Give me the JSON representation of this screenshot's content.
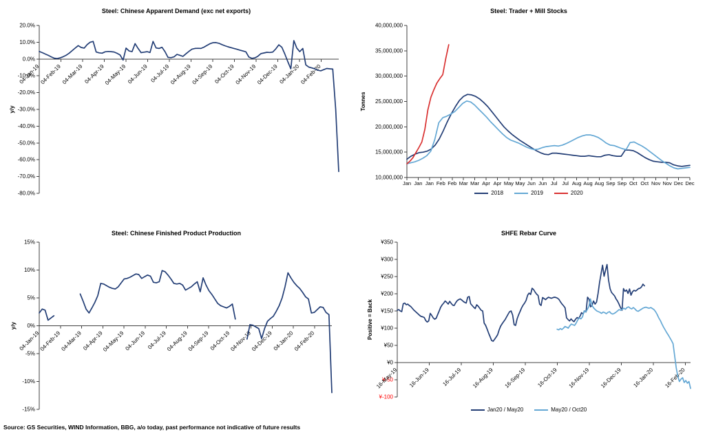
{
  "page": {
    "source_note": "Source: GS Securities, WIND Information, BBG, a/o today, past performance not indicative of future results"
  },
  "colors": {
    "navy": "#223d75",
    "light_blue": "#63a7d4",
    "red": "#d93030",
    "negative_tick_red": "#ff0000",
    "axis": "#404040"
  },
  "chart_data": [
    {
      "id": "demand",
      "type": "line",
      "title": "Steel: Chinese Apparent Demand (exc net exports)",
      "ylabel": "y/y",
      "ylim": [
        -80,
        20
      ],
      "ytick_step": 10,
      "yfmt": "pct1",
      "grid": false,
      "legend": false,
      "x_tick_rotated": true,
      "x_tick_end_frac": 0.941,
      "x_ticks": [
        "04-Jan-19",
        "04-Feb-19",
        "04-Mar-19",
        "04-Apr-19",
        "04-May-19",
        "04-Jun-19",
        "04-Jul-19",
        "04-Aug-19",
        "04-Sep-19",
        "04-Oct-19",
        "04-Nov-19",
        "04-Dec-19",
        "04-Jan-20",
        "04-Feb-20"
      ],
      "series": [
        {
          "name": "y/y",
          "color": "#223d75",
          "x_start": 0,
          "x_end": 1,
          "values": [
            4.5,
            3.8,
            3.0,
            2.2,
            1.3,
            0.5,
            0.3,
            0.7,
            1.4,
            2.3,
            3.5,
            5.0,
            6.5,
            8.0,
            6.9,
            6.5,
            8.6,
            10.0,
            10.5,
            4.2,
            3.7,
            3.5,
            4.3,
            4.5,
            4.4,
            4.2,
            3.4,
            2.4,
            -0.6,
            6.5,
            4.8,
            4.4,
            9.2,
            6.3,
            3.8,
            4.1,
            4.4,
            3.9,
            10.5,
            6.6,
            6.3,
            7.0,
            4.4,
            1.0,
            0.8,
            1.3,
            2.8,
            2.2,
            1.6,
            3.1,
            4.6,
            5.9,
            6.3,
            6.4,
            6.3,
            7.1,
            8.1,
            9.1,
            9.7,
            9.8,
            9.4,
            8.6,
            7.9,
            7.3,
            6.8,
            6.3,
            5.8,
            5.3,
            4.8,
            4.3,
            1.2,
            0.4,
            0.7,
            1.7,
            3.2,
            3.6,
            4.0,
            3.9,
            4.2,
            6.1,
            8.5,
            7.0,
            3.0,
            -1.5,
            -5.8,
            11.0,
            6.5,
            4.4,
            6.3,
            -3.5,
            -4.8,
            -5.3,
            -5.8,
            -6.7,
            -7.0,
            -6.3,
            -5.6,
            -5.8,
            -6.0,
            -30.0,
            -67.0
          ]
        }
      ]
    },
    {
      "id": "stocks",
      "type": "line",
      "title": "Steel: Trader + Mill Stocks",
      "ylabel": "Tonnes",
      "ylim": [
        10,
        40
      ],
      "ytick_step": 5,
      "yfmt": "comma_millions",
      "grid": false,
      "legend": true,
      "x_tick_rotated": false,
      "x_tick_end_frac": 1,
      "x_ticks": [
        "Jan",
        "Jan",
        "Jan",
        "Feb",
        "Feb",
        "Mar",
        "Mar",
        "Apr",
        "Apr",
        "May",
        "May",
        "Jun",
        "Jun",
        "Jul",
        "Jul",
        "Aug",
        "Aug",
        "Aug",
        "Sep",
        "Sep",
        "Oct",
        "Oct",
        "Nov",
        "Nov",
        "Dec",
        "Dec"
      ],
      "series": [
        {
          "name": "2018",
          "color": "#223d75",
          "x_start": 0,
          "x_end": 1,
          "values": [
            13.6,
            14.2,
            14.6,
            14.9,
            15.0,
            15.2,
            15.6,
            16.4,
            17.6,
            19.2,
            21.0,
            22.6,
            24.0,
            25.2,
            26.0,
            26.4,
            26.3,
            26.0,
            25.5,
            24.8,
            24.0,
            23.0,
            22.0,
            21.0,
            20.0,
            19.2,
            18.5,
            17.9,
            17.3,
            16.8,
            16.3,
            15.8,
            15.3,
            14.9,
            14.6,
            14.5,
            14.8,
            14.8,
            14.7,
            14.6,
            14.5,
            14.4,
            14.3,
            14.2,
            14.2,
            14.3,
            14.2,
            14.1,
            14.1,
            14.4,
            14.5,
            14.3,
            14.2,
            14.2,
            15.4,
            15.4,
            15.3,
            14.9,
            14.4,
            13.9,
            13.5,
            13.2,
            13.1,
            13.0,
            13.0,
            12.9,
            12.5,
            12.3,
            12.2,
            12.3,
            12.4
          ]
        },
        {
          "name": "2019",
          "color": "#63a7d4",
          "x_start": 0,
          "x_end": 1,
          "values": [
            12.7,
            12.9,
            13.1,
            13.4,
            13.8,
            14.3,
            15.2,
            17.5,
            20.8,
            21.8,
            22.1,
            22.5,
            23.0,
            23.8,
            24.6,
            25.1,
            24.9,
            24.3,
            23.5,
            22.7,
            21.9,
            21.0,
            20.2,
            19.4,
            18.6,
            17.9,
            17.4,
            17.1,
            16.8,
            16.4,
            16.0,
            15.7,
            15.5,
            15.6,
            15.9,
            16.1,
            16.2,
            16.3,
            16.2,
            16.4,
            16.7,
            17.1,
            17.5,
            17.9,
            18.2,
            18.4,
            18.4,
            18.2,
            17.9,
            17.4,
            16.8,
            16.4,
            16.3,
            16.0,
            15.7,
            15.5,
            16.9,
            17.0,
            16.6,
            16.2,
            15.7,
            15.1,
            14.5,
            13.9,
            13.3,
            12.8,
            12.3,
            11.9,
            11.7,
            11.8,
            11.9,
            12.0
          ]
        },
        {
          "name": "2020",
          "color": "#d93030",
          "x_start": 0,
          "x_end": 0.148,
          "values": [
            12.7,
            13.2,
            13.9,
            14.9,
            15.9,
            17.0,
            19.5,
            23.3,
            25.8,
            27.3,
            28.6,
            29.5,
            30.3,
            33.5,
            36.2
          ]
        }
      ]
    },
    {
      "id": "production",
      "type": "line",
      "title": "Steel: Chinese Finished Product Production",
      "ylabel": "y/y",
      "ylim": [
        -15,
        15
      ],
      "ytick_step": 5,
      "yfmt": "pct0",
      "grid": false,
      "legend": false,
      "x_tick_rotated": true,
      "x_tick_end_frac": 0.941,
      "x_ticks": [
        "04-Jan-19",
        "04-Feb-19",
        "04-Mar-19",
        "04-Apr-19",
        "04-May-19",
        "04-Jun-19",
        "04-Jul-19",
        "04-Aug-19",
        "04-Sep-19",
        "04-Oct-19",
        "04-Nov-19",
        "04-Dec-19",
        "04-Jan-20",
        "04-Feb-20"
      ],
      "series": [
        {
          "name": "y/y",
          "color": "#223d75",
          "x_start": 0,
          "x_end": 1,
          "values": [
            2.3,
            3.0,
            2.8,
            1.0,
            1.4,
            1.8,
            null,
            null,
            null,
            null,
            null,
            null,
            null,
            null,
            5.7,
            4.4,
            3.0,
            2.3,
            3.2,
            4.2,
            5.4,
            7.6,
            7.5,
            7.2,
            6.9,
            6.7,
            6.6,
            7.0,
            7.7,
            8.4,
            8.5,
            8.7,
            9.0,
            9.3,
            9.2,
            8.5,
            8.8,
            9.1,
            8.9,
            7.8,
            7.7,
            7.9,
            9.9,
            9.7,
            9.1,
            8.4,
            7.6,
            7.5,
            7.6,
            7.3,
            6.4,
            6.7,
            7.0,
            7.5,
            7.9,
            6.1,
            8.6,
            7.3,
            6.3,
            5.6,
            4.8,
            4.0,
            3.6,
            3.4,
            3.2,
            3.5,
            3.9,
            1.2,
            null,
            null,
            null,
            -2.4,
            0.2,
            0.1,
            -0.2,
            -0.5,
            -2.3,
            -0.5,
            0.8,
            1.3,
            1.7,
            2.6,
            3.6,
            5.0,
            7.0,
            9.5,
            8.6,
            7.8,
            7.2,
            6.7,
            6.0,
            5.2,
            4.8,
            2.3,
            2.4,
            2.9,
            3.4,
            3.3,
            2.4,
            2.0,
            -12.0
          ]
        }
      ]
    },
    {
      "id": "rebar",
      "type": "line",
      "title": "SHFE Rebar Curve",
      "ylabel": "Positive = Back",
      "ylim": [
        -100,
        350
      ],
      "ytick_step": 50,
      "yfmt": "yen",
      "negative_red": true,
      "grid": false,
      "legend": true,
      "x_tick_rotated": true,
      "x_tick_end_frac": 0.982,
      "x_ticks": [
        "16-May-19",
        "16-Jun-19",
        "16-Jul-19",
        "16-Aug-19",
        "16-Sep-19",
        "16-Oct-19",
        "16-Nov-19",
        "16-Dec-19",
        "16-Jan-20",
        "16-Feb-20"
      ],
      "series": [
        {
          "name": "Jan20 / May20",
          "color": "#223d75",
          "x_start": 0,
          "x_end": 0.843,
          "values": [
            152,
            154,
            150,
            148,
            171,
            173,
            168,
            170,
            166,
            163,
            158,
            153,
            149,
            145,
            141,
            137,
            134,
            133,
            131,
            122,
            118,
            121,
            143,
            137,
            130,
            126,
            129,
            140,
            150,
            161,
            168,
            173,
            179,
            175,
            170,
            178,
            172,
            167,
            166,
            174,
            180,
            183,
            185,
            182,
            178,
            175,
            173,
            190,
            192,
            171,
            166,
            161,
            157,
            168,
            164,
            158,
            152,
            150,
            115,
            108,
            97,
            85,
            75,
            64,
            62,
            68,
            74,
            81,
            95,
            106,
            113,
            119,
            125,
            133,
            141,
            148,
            150,
            138,
            110,
            108,
            127,
            139,
            149,
            159,
            167,
            173,
            181,
            196,
            202,
            198,
            216,
            212,
            205,
            199,
            195,
            170,
            166,
            189,
            186,
            183,
            187,
            190,
            188,
            187,
            189,
            190,
            189,
            187,
            183,
            176,
            170,
            165,
            159,
            130,
            125,
            121,
            127,
            122,
            119,
            126,
            131,
            128,
            135,
            145,
            141,
            150,
            147,
            190,
            184,
            162,
            166,
            179,
            170,
            176,
            200,
            232,
            258,
            283,
            251,
            268,
            285,
            240,
            215,
            204,
            199,
            194,
            185,
            179,
            170,
            160,
            152,
            215,
            207,
            211,
            201,
            214,
            196,
            206,
            210,
            208,
            211,
            215,
            216,
            220,
            228,
            223
          ]
        },
        {
          "name": "May20 / Oct20",
          "color": "#63a7d4",
          "x_start": 0.545,
          "x_end": 1,
          "values": [
            97,
            95,
            99,
            96,
            100,
            105,
            103,
            100,
            107,
            112,
            110,
            108,
            115,
            124,
            130,
            127,
            133,
            150,
            147,
            154,
            163,
            185,
            166,
            159,
            154,
            150,
            148,
            146,
            143,
            147,
            145,
            142,
            146,
            148,
            143,
            141,
            143,
            146,
            150,
            154,
            152,
            155,
            158,
            155,
            160,
            162,
            158,
            156,
            160,
            156,
            151,
            149,
            152,
            155,
            158,
            160,
            161,
            159,
            158,
            160,
            157,
            154,
            148,
            140,
            130,
            122,
            112,
            103,
            95,
            87,
            80,
            72,
            64,
            55,
            20,
            -15,
            -40,
            -55,
            -48,
            -44,
            -58,
            -52,
            -60,
            -55,
            -75
          ]
        }
      ]
    }
  ]
}
